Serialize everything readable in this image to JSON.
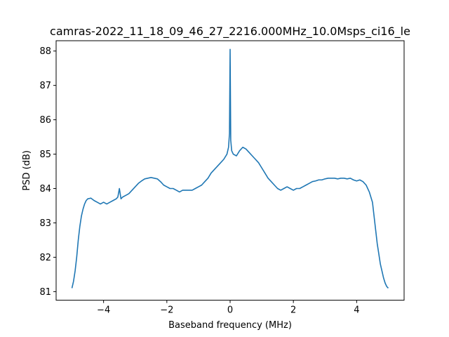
{
  "chart_data": {
    "type": "line",
    "title": "camras-2022_11_18_09_46_27_2216.000MHz_10.0Msps_ci16_le",
    "xlabel": "Baseband frequency (MHz)",
    "ylabel": "PSD (dB)",
    "xlim": [
      -5.5,
      5.5
    ],
    "ylim": [
      80.75,
      88.3
    ],
    "xticks": [
      -4,
      -2,
      0,
      2,
      4
    ],
    "xtick_labels": [
      "−4",
      "−2",
      "0",
      "2",
      "4"
    ],
    "yticks": [
      81,
      82,
      83,
      84,
      85,
      86,
      87,
      88
    ],
    "ytick_labels": [
      "81",
      "82",
      "83",
      "84",
      "85",
      "86",
      "87",
      "88"
    ],
    "grid": false,
    "line_color": "#1f77b4",
    "series": [
      {
        "x": [
          -5.0,
          -4.95,
          -4.9,
          -4.85,
          -4.8,
          -4.75,
          -4.7,
          -4.65,
          -4.6,
          -4.55,
          -4.5,
          -4.4,
          -4.3,
          -4.2,
          -4.1,
          -4.0,
          -3.9,
          -3.8,
          -3.7,
          -3.6,
          -3.55,
          -3.5,
          -3.45,
          -3.4,
          -3.3,
          -3.2,
          -3.1,
          -3.0,
          -2.9,
          -2.8,
          -2.7,
          -2.6,
          -2.5,
          -2.4,
          -2.3,
          -2.2,
          -2.1,
          -2.0,
          -1.9,
          -1.8,
          -1.7,
          -1.6,
          -1.5,
          -1.4,
          -1.3,
          -1.2,
          -1.1,
          -1.0,
          -0.9,
          -0.8,
          -0.7,
          -0.6,
          -0.5,
          -0.4,
          -0.3,
          -0.2,
          -0.1,
          -0.05,
          -0.02,
          0.0,
          0.02,
          0.05,
          0.1,
          0.2,
          0.3,
          0.4,
          0.5,
          0.6,
          0.7,
          0.8,
          0.9,
          1.0,
          1.1,
          1.2,
          1.3,
          1.4,
          1.5,
          1.6,
          1.7,
          1.8,
          1.9,
          2.0,
          2.1,
          2.2,
          2.3,
          2.4,
          2.5,
          2.6,
          2.7,
          2.8,
          2.9,
          3.0,
          3.1,
          3.2,
          3.3,
          3.4,
          3.5,
          3.6,
          3.7,
          3.8,
          3.9,
          4.0,
          4.1,
          4.2,
          4.3,
          4.4,
          4.5,
          4.55,
          4.6,
          4.65,
          4.7,
          4.75,
          4.8,
          4.85,
          4.9,
          4.95,
          5.0
        ],
        "y": [
          81.1,
          81.3,
          81.6,
          82.0,
          82.5,
          82.9,
          83.2,
          83.4,
          83.55,
          83.65,
          83.7,
          83.72,
          83.65,
          83.6,
          83.55,
          83.6,
          83.55,
          83.6,
          83.65,
          83.7,
          83.75,
          84.0,
          83.7,
          83.75,
          83.8,
          83.85,
          83.95,
          84.05,
          84.15,
          84.22,
          84.28,
          84.3,
          84.32,
          84.3,
          84.28,
          84.2,
          84.1,
          84.05,
          84.0,
          84.0,
          83.95,
          83.9,
          83.95,
          83.95,
          83.95,
          83.95,
          84.0,
          84.05,
          84.1,
          84.2,
          84.3,
          84.45,
          84.55,
          84.65,
          84.75,
          84.85,
          85.0,
          85.2,
          85.6,
          88.05,
          85.4,
          85.1,
          85.0,
          84.95,
          85.1,
          85.2,
          85.15,
          85.05,
          84.95,
          84.85,
          84.75,
          84.6,
          84.45,
          84.3,
          84.2,
          84.1,
          84.0,
          83.95,
          84.0,
          84.05,
          84.0,
          83.95,
          84.0,
          84.0,
          84.05,
          84.1,
          84.15,
          84.2,
          84.22,
          84.25,
          84.25,
          84.28,
          84.3,
          84.3,
          84.3,
          84.28,
          84.3,
          84.3,
          84.28,
          84.3,
          84.25,
          84.22,
          84.25,
          84.2,
          84.1,
          83.9,
          83.6,
          83.2,
          82.8,
          82.4,
          82.1,
          81.8,
          81.6,
          81.4,
          81.25,
          81.15,
          81.1
        ]
      }
    ]
  }
}
